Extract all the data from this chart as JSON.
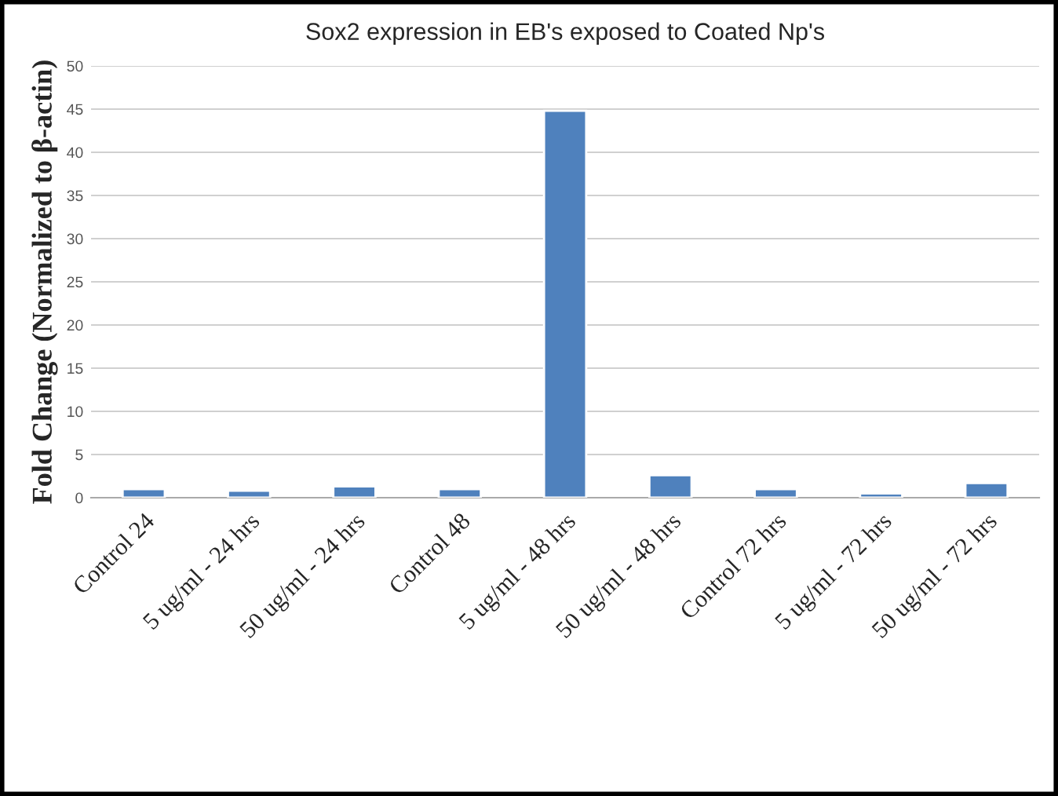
{
  "chart_data": {
    "type": "bar",
    "title": "Sox2 expression in EB's exposed to Coated Np's",
    "ylabel": "Fold Change (Normalized to β-actin)",
    "categories": [
      "Control 24",
      "5 ug/ml - 24 hrs",
      "50 ug/ml - 24 hrs",
      "Control 48",
      "5 ug/ml - 48 hrs",
      "50 ug/ml - 48 hrs",
      "Control 72 hrs",
      "5 ug/ml - 72 hrs",
      "50 ug/ml - 72 hrs"
    ],
    "values": [
      1.0,
      0.8,
      1.3,
      1.0,
      44.8,
      2.6,
      1.0,
      0.5,
      1.7
    ],
    "color": "#4f81bd",
    "ylim": [
      0,
      50
    ],
    "yticks": [
      0,
      5,
      10,
      15,
      20,
      25,
      30,
      35,
      40,
      45,
      50
    ],
    "grid": "y",
    "legend": false
  }
}
